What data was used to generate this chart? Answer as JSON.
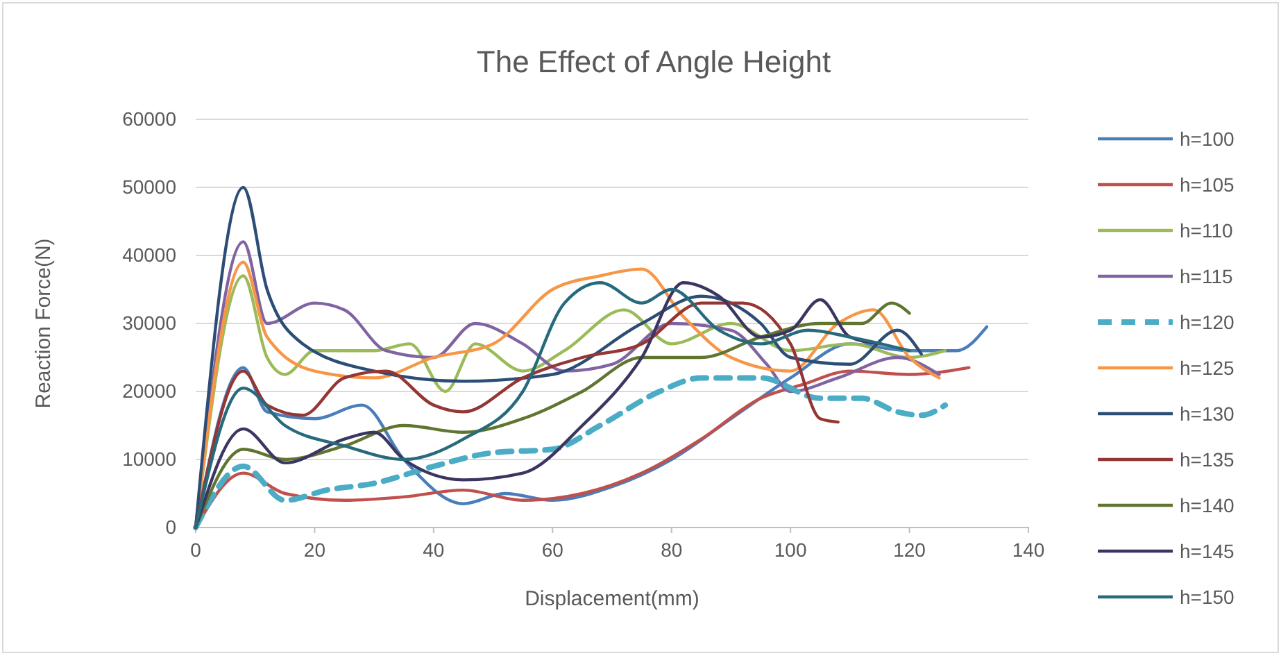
{
  "chart_data": {
    "type": "line",
    "title": "The Effect of Angle Height",
    "xlabel": "Displacement(mm)",
    "ylabel": "Reaction Force(N)",
    "xlim": [
      0,
      140
    ],
    "xticks": [
      0,
      20,
      40,
      60,
      80,
      100,
      120,
      140
    ],
    "ylim": [
      0,
      60000
    ],
    "yticks": [
      0,
      10000,
      20000,
      30000,
      40000,
      50000,
      60000
    ],
    "grid": "y",
    "legend": "right",
    "marker": "none",
    "series": [
      {
        "name": "h=100",
        "color": "#4a7ebb",
        "x": [
          0,
          8,
          12,
          20,
          28,
          35,
          45,
          52,
          60,
          70,
          80,
          90,
          100,
          110,
          120,
          128,
          133
        ],
        "values": [
          0,
          23500,
          17000,
          16000,
          18000,
          10000,
          3500,
          5000,
          4000,
          6000,
          10000,
          16000,
          22000,
          27000,
          26000,
          26000,
          29500
        ]
      },
      {
        "name": "h=105",
        "color": "#c0504d",
        "x": [
          0,
          8,
          15,
          25,
          35,
          45,
          55,
          65,
          75,
          85,
          95,
          102,
          110,
          120,
          130
        ],
        "values": [
          0,
          8000,
          5000,
          4000,
          4500,
          5500,
          4000,
          5000,
          8000,
          13000,
          19000,
          21000,
          23000,
          22500,
          23500
        ]
      },
      {
        "name": "h=110",
        "color": "#9bbb59",
        "x": [
          0,
          8,
          12,
          15,
          20,
          30,
          36,
          42,
          47,
          55,
          62,
          72,
          80,
          90,
          100,
          110,
          120,
          126
        ],
        "values": [
          0,
          37000,
          25000,
          22500,
          26000,
          26000,
          27000,
          20000,
          27000,
          23000,
          26000,
          32000,
          27000,
          30000,
          26000,
          27000,
          25000,
          26000
        ]
      },
      {
        "name": "h=115",
        "color": "#8064a2",
        "x": [
          0,
          8,
          12,
          20,
          25,
          32,
          40,
          47,
          55,
          62,
          70,
          80,
          90,
          96,
          100,
          108,
          118,
          125
        ],
        "values": [
          0,
          42000,
          30000,
          33000,
          32000,
          26000,
          25000,
          30000,
          27000,
          23000,
          24000,
          30000,
          29000,
          24000,
          20000,
          22000,
          25000,
          22500
        ]
      },
      {
        "name": "h=120",
        "color": "#4bacc6",
        "line_style": "dashed",
        "x": [
          0,
          8,
          15,
          22,
          30,
          40,
          50,
          60,
          68,
          78,
          85,
          95,
          105,
          112,
          118,
          122,
          126
        ],
        "values": [
          0,
          9000,
          4000,
          5500,
          6500,
          9000,
          11000,
          11500,
          15000,
          20000,
          22000,
          22000,
          19000,
          19000,
          17000,
          16500,
          18000
        ]
      },
      {
        "name": "h=125",
        "color": "#f79646",
        "x": [
          0,
          8,
          12,
          20,
          30,
          40,
          50,
          60,
          68,
          75,
          82,
          90,
          100,
          108,
          114,
          120,
          125
        ],
        "values": [
          0,
          39000,
          28000,
          23000,
          22000,
          25000,
          27000,
          35000,
          37000,
          38000,
          31000,
          25000,
          23000,
          30000,
          32000,
          25000,
          22000
        ]
      },
      {
        "name": "h=130",
        "color": "#2c4d75",
        "x": [
          0,
          8,
          12,
          18,
          30,
          45,
          60,
          75,
          85,
          95,
          100,
          110,
          118,
          122
        ],
        "values": [
          0,
          50000,
          35000,
          27000,
          23000,
          21500,
          22500,
          30000,
          34000,
          30000,
          25000,
          24000,
          29000,
          25500
        ]
      },
      {
        "name": "h=135",
        "color": "#943634",
        "x": [
          0,
          8,
          12,
          18,
          25,
          32,
          40,
          45,
          55,
          65,
          75,
          85,
          92,
          100,
          105,
          108
        ],
        "values": [
          0,
          23000,
          18000,
          16500,
          22000,
          23000,
          18000,
          17000,
          22000,
          25000,
          27000,
          33000,
          33000,
          27000,
          16000,
          15500
        ]
      },
      {
        "name": "h=140",
        "color": "#5f7530",
        "x": [
          0,
          8,
          15,
          25,
          35,
          45,
          55,
          65,
          75,
          85,
          95,
          105,
          112,
          117,
          120
        ],
        "values": [
          0,
          11500,
          10000,
          12000,
          15000,
          14000,
          16000,
          20000,
          25000,
          25000,
          28000,
          30000,
          30000,
          33000,
          31500
        ]
      },
      {
        "name": "h=145",
        "color": "#3b3561",
        "x": [
          0,
          8,
          15,
          25,
          30,
          35,
          45,
          55,
          65,
          75,
          82,
          88,
          95,
          100,
          105,
          110,
          115
        ],
        "values": [
          0,
          14500,
          9500,
          13000,
          14000,
          10000,
          7000,
          8000,
          15000,
          25000,
          36000,
          34000,
          28000,
          29000,
          33500,
          28000,
          27000
        ]
      },
      {
        "name": "h=150",
        "color": "#276a7c",
        "x": [
          0,
          8,
          15,
          25,
          35,
          45,
          55,
          62,
          68,
          75,
          80,
          88,
          95,
          103,
          110,
          120
        ],
        "values": [
          0,
          20500,
          15000,
          12000,
          10000,
          13000,
          20000,
          33000,
          36000,
          33000,
          35000,
          29000,
          27000,
          29000,
          28000,
          26000
        ]
      }
    ]
  }
}
